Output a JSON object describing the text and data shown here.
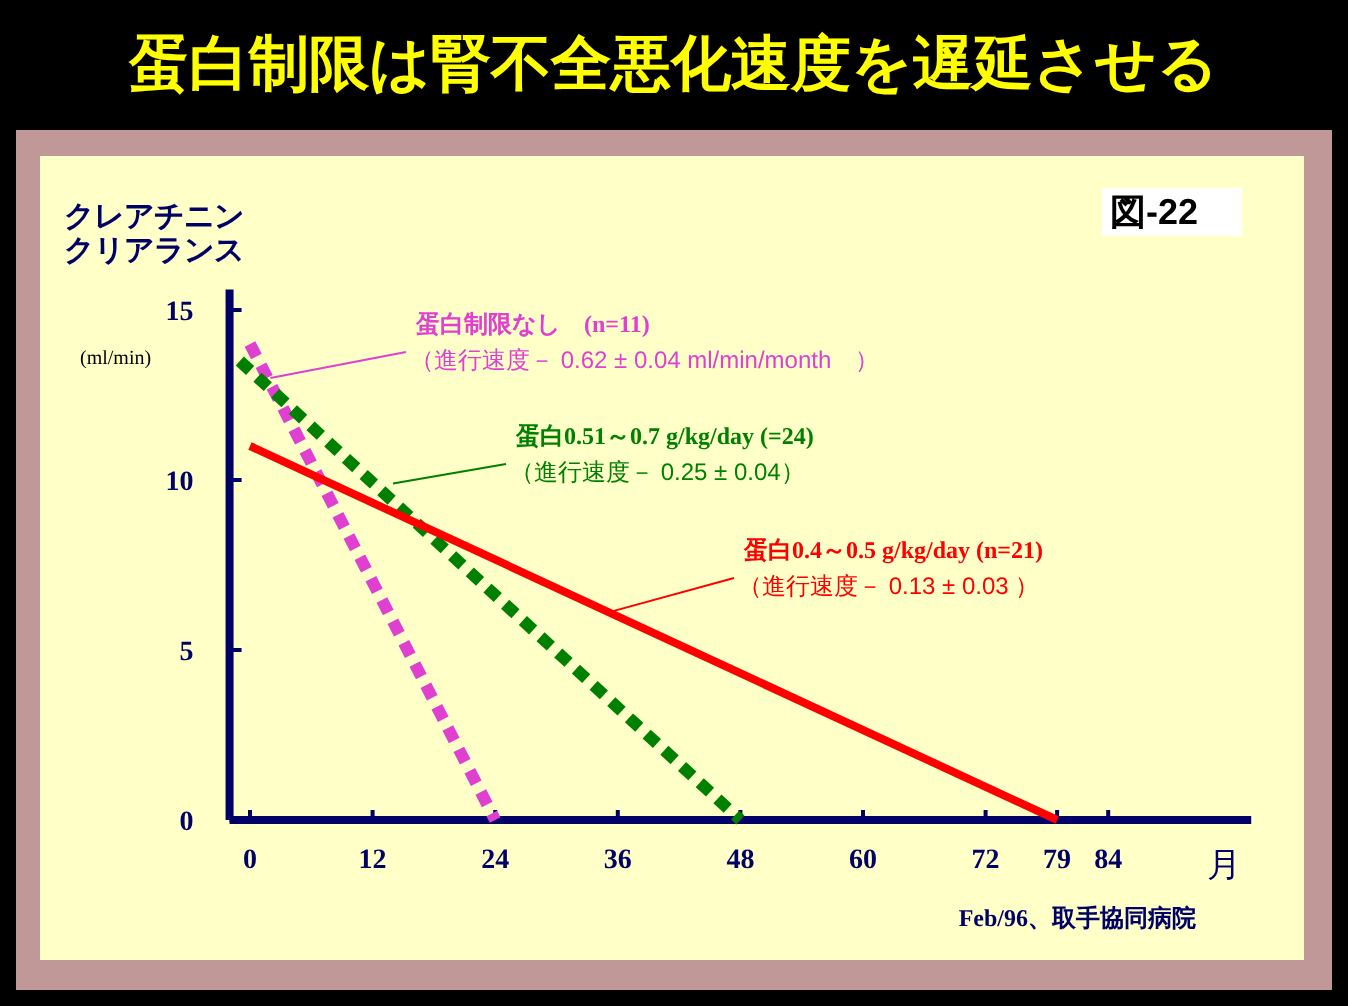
{
  "chart_data": {
    "type": "line",
    "title": "蛋白制限は腎不全悪化速度を遅延させる",
    "ylabel": "クレアチニンクリアランス",
    "xlabel": "月",
    "xlim": [
      -2,
      98
    ],
    "ylim": [
      0,
      15.6
    ],
    "xticks": [
      0,
      12,
      24,
      36,
      48,
      60,
      72,
      79,
      84
    ],
    "yticks": [
      0,
      5,
      10,
      15
    ],
    "grid": false,
    "marker": "none",
    "series": [
      {
        "name": "蛋白制限なし　(n=11)",
        "color": "#e040d0",
        "line_style": "dashed",
        "x": [
          0,
          24
        ],
        "values": [
          14,
          0
        ]
      },
      {
        "name": "蛋白0.51～0.7 g/kg/day (=24)",
        "color": "#008000",
        "line_style": "dashed",
        "x": [
          -1,
          48
        ],
        "values": [
          13.5,
          0
        ]
      },
      {
        "name": "蛋白0.4～0.5 g/kg/day (n=21)",
        "color": "#ff0000",
        "line_style": "solid",
        "x": [
          0,
          79
        ],
        "values": [
          11,
          0
        ]
      }
    ],
    "annotations": [
      {
        "text": "（進行速度－ 0.62 ± 0.04 ml/min/month　）",
        "x": 2,
        "y": 13
      },
      {
        "text": "（進行速度－ 0.25 ± 0.04）",
        "x": 14,
        "y": 9.9
      },
      {
        "text": "（進行速度－ 0.13 ± 0.03 ）",
        "x": 35,
        "y": 6.1
      },
      "(ml/min)",
      "図-22",
      "Feb/96、取手協同病院"
    ]
  }
}
